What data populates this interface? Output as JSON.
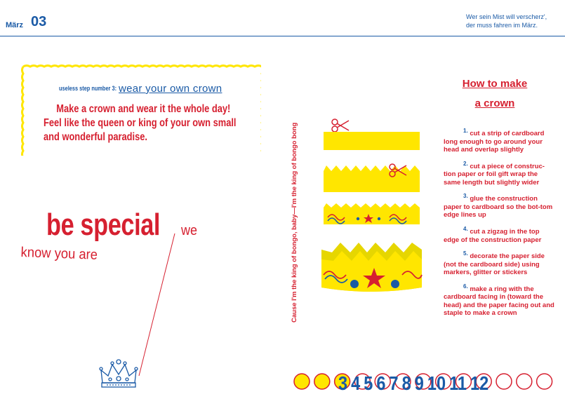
{
  "header": {
    "month": "März",
    "month_number": "03",
    "quote_line1": "Wer sein Mist will verscherz',",
    "quote_line2": "der muss fahren im März."
  },
  "tip_box": {
    "step_label": "useless step number 3:",
    "step_title": "wear your own crown",
    "body": "Make a crown and wear it the whole day! Feel like the queen or king of your own small and wonderful paradise."
  },
  "slogan": {
    "main": "be special",
    "we": "we",
    "know": "know you are"
  },
  "vertical_text": "Cause I'm the king of bongo, baby—I'm the king of bongo bong",
  "howto": {
    "title_line1": "How to make",
    "title_line2": "a crown",
    "steps": [
      {
        "num": "1.",
        "text": "cut a strip of cardboard long enough to go around your head and overlap slightly"
      },
      {
        "num": "2.",
        "text": "cut a piece of construc-tion paper or foil gift wrap the same length but slightly wider"
      },
      {
        "num": "3.",
        "text": "glue the construction paper to cardboard so the bot-tom edge lines up"
      },
      {
        "num": "4.",
        "text": "cut a zigzag in the top edge of the construction paper"
      },
      {
        "num": "5.",
        "text": "decorate the paper side (not the cardboard side) using markers, glitter or stickers"
      },
      {
        "num": "6.",
        "text": "make a ring with the cardboard facing in (toward the head) and the paper facing out and staple to make a crown"
      }
    ]
  },
  "month_counter": {
    "numbers": [
      "3",
      "4",
      "5",
      "6",
      "7",
      "8",
      "9",
      "10",
      "11",
      "12"
    ],
    "filled_circles": 3,
    "total_circles": 13
  },
  "colors": {
    "blue": "#1a5aa6",
    "red": "#d62030",
    "yellow": "#ffe600"
  },
  "icons": [
    "scissors-icon",
    "crown-icon",
    "star-icon"
  ]
}
